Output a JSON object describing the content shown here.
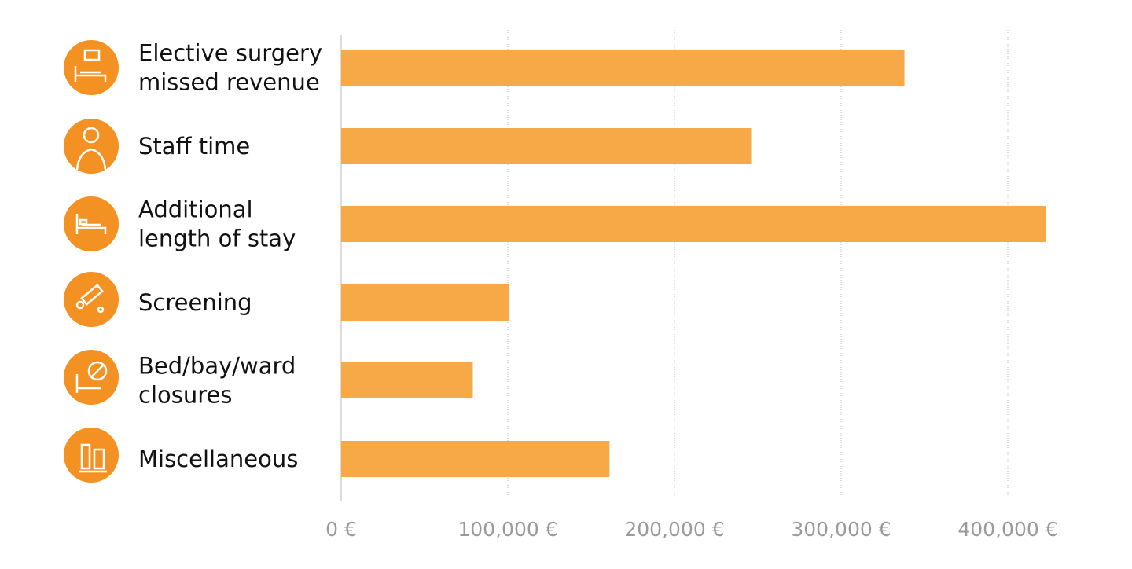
{
  "chart_data": {
    "type": "hbar",
    "categories": [
      "Elective surgery\nmissed revenue",
      "Staff time",
      "Additional\nlength of stay",
      "Screening",
      "Bed/bay/ward\nclosures",
      "Miscellaneous"
    ],
    "values": [
      338000,
      246000,
      423000,
      101000,
      79000,
      161000
    ],
    "color": "#f7a947",
    "xlim": [
      0,
      430000
    ],
    "xticks": [
      {
        "value": 0,
        "label": "0 €"
      },
      {
        "value": 100000,
        "label": "100,000 €"
      },
      {
        "value": 200000,
        "label": "200,000 €"
      },
      {
        "value": 300000,
        "label": "300,000 €"
      },
      {
        "value": 400000,
        "label": "400,000 €"
      }
    ],
    "grid": true
  }
}
